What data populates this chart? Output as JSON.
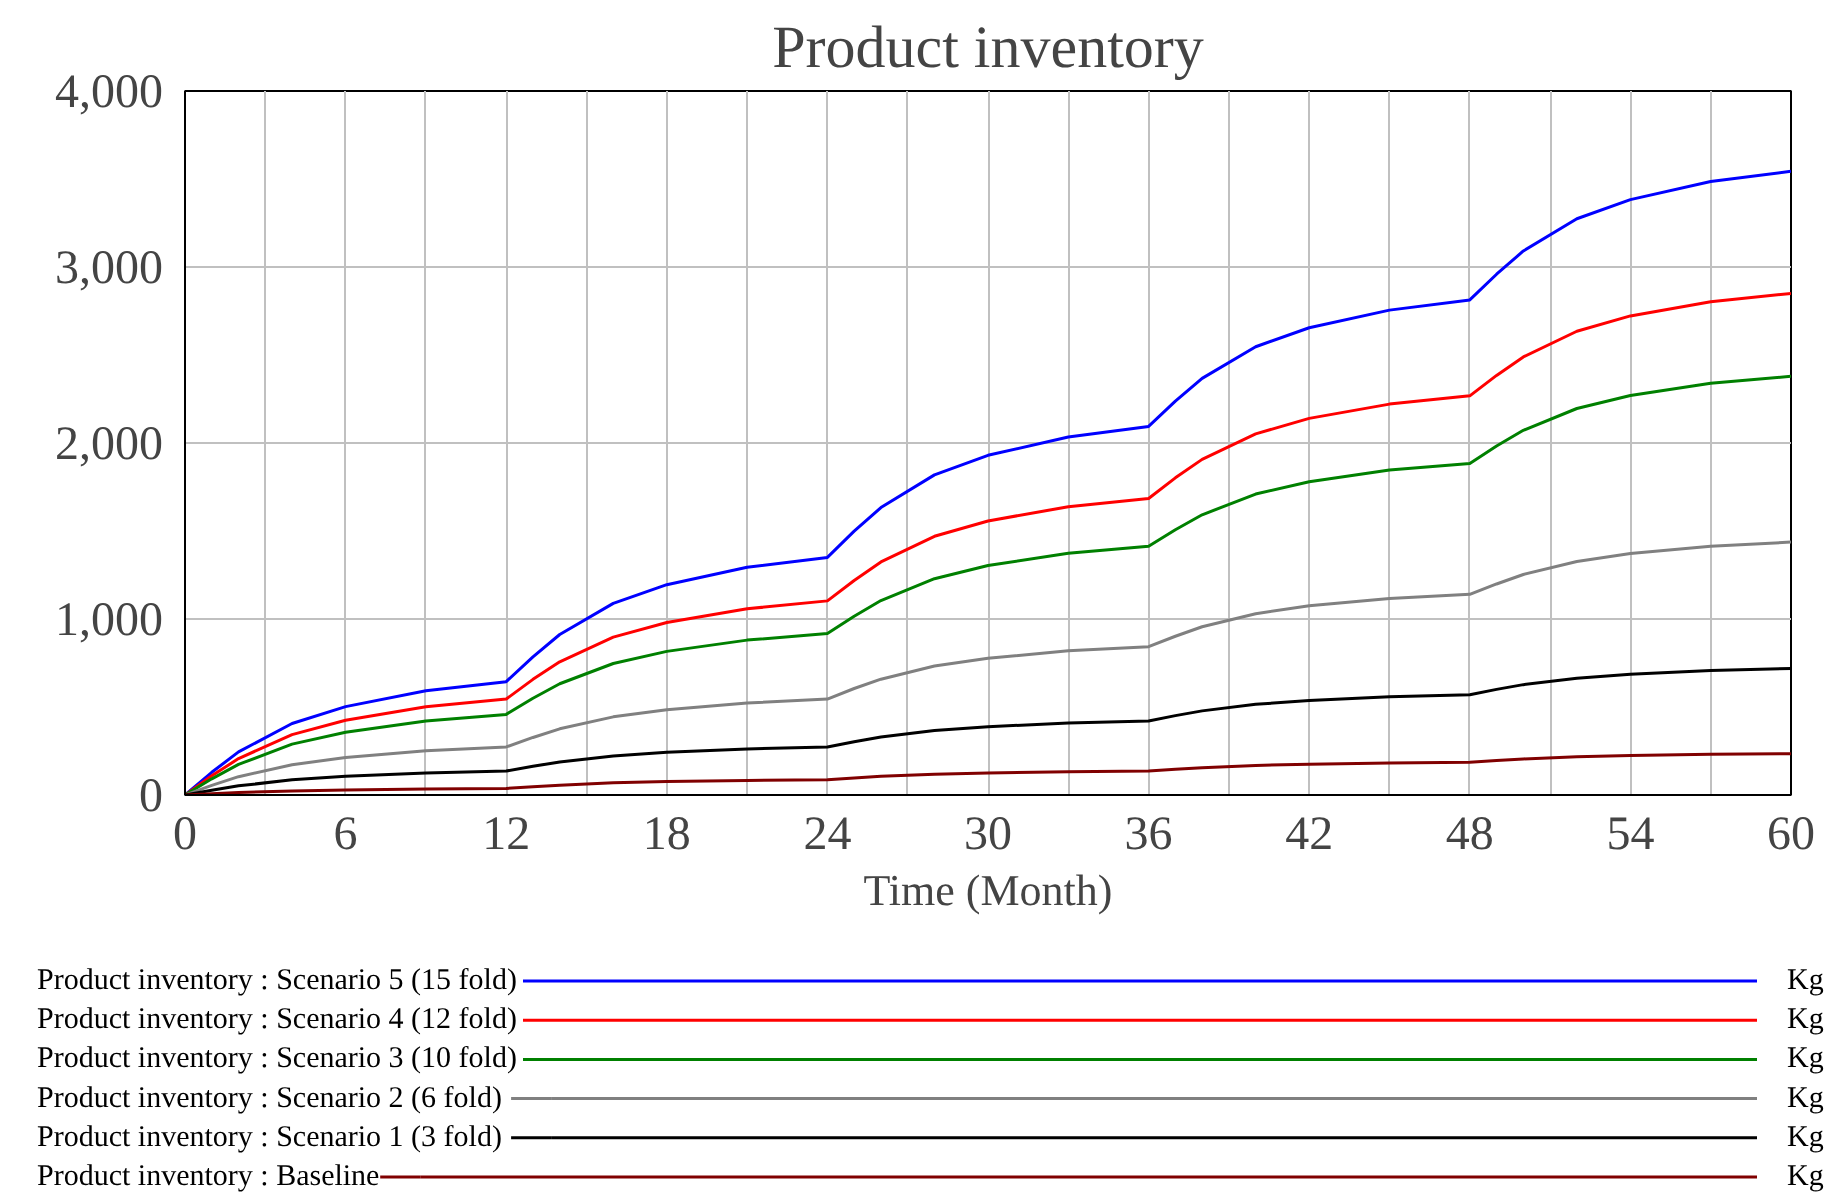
{
  "chart_data": {
    "type": "line",
    "title": "Product inventory",
    "xlabel": "Time (Month)",
    "x": [
      0,
      1,
      2,
      4,
      6,
      9,
      12,
      13,
      14,
      16,
      18,
      21,
      24,
      25,
      26,
      28,
      30,
      33,
      36,
      37,
      38,
      40,
      42,
      45,
      48,
      49,
      50,
      52,
      54,
      57,
      60
    ],
    "xlim": [
      0,
      60
    ],
    "xticks": [
      0,
      {
        "value": 3,
        "label": null
      },
      6,
      {
        "value": 9,
        "label": null
      },
      12,
      {
        "value": 15,
        "label": null
      },
      18,
      {
        "value": 21,
        "label": null
      },
      24,
      {
        "value": 27,
        "label": null
      },
      30,
      {
        "value": 33,
        "label": null
      },
      36,
      {
        "value": 39,
        "label": null
      },
      42,
      {
        "value": 45,
        "label": null
      },
      48,
      {
        "value": 51,
        "label": null
      },
      54,
      {
        "value": 57,
        "label": null
      },
      60
    ],
    "ylim": [
      0,
      4000
    ],
    "yticks": [
      0,
      {
        "value": 1000,
        "label": "1,000"
      },
      {
        "value": 2000,
        "label": "2,000"
      },
      {
        "value": 3000,
        "label": "3,000"
      },
      {
        "value": 4000,
        "label": "4,000"
      }
    ],
    "grid": true,
    "legend": "bottom",
    "marker": "none",
    "line_style": "solid",
    "series": [
      {
        "name": "Product inventory : Scenario 5 (15 fold)",
        "color": "#0000ff",
        "values": [
          0,
          129,
          245,
          406,
          502,
          592,
          644,
          785,
          912,
          1089,
          1195,
          1294,
          1350,
          1499,
          1633,
          1819,
          1930,
          2034,
          2094,
          2238,
          2367,
          2547,
          2655,
          2755,
          2813,
          2959,
          3091,
          3274,
          3383,
          3486,
          3544
        ]
      },
      {
        "name": "Product inventory : Scenario 4 (12 fold)",
        "color": "#ff0000",
        "values": [
          0,
          109,
          207,
          343,
          425,
          501,
          545,
          657,
          757,
          897,
          980,
          1058,
          1103,
          1219,
          1324,
          1470,
          1557,
          1638,
          1685,
          1802,
          1907,
          2052,
          2140,
          2221,
          2268,
          2384,
          2489,
          2635,
          2722,
          2803,
          2850
        ]
      },
      {
        "name": "Product inventory : Scenario 3 (10 fold)",
        "color": "#008000",
        "values": [
          0,
          92,
          174,
          289,
          357,
          421,
          458,
          550,
          632,
          747,
          816,
          880,
          917,
          1016,
          1105,
          1229,
          1304,
          1373,
          1413,
          1507,
          1592,
          1710,
          1780,
          1846,
          1884,
          1983,
          2072,
          2196,
          2270,
          2339,
          2379
        ]
      },
      {
        "name": "Product inventory : Scenario 2 (6 fold)",
        "color": "#808080",
        "values": [
          0,
          55,
          104,
          172,
          213,
          251,
          273,
          327,
          376,
          444,
          485,
          523,
          545,
          605,
          658,
          733,
          777,
          819,
          843,
          902,
          956,
          1030,
          1075,
          1116,
          1140,
          1199,
          1253,
          1327,
          1372,
          1413,
          1437
        ]
      },
      {
        "name": "Product inventory : Scenario 1 (3 fold)",
        "color": "#000000",
        "values": [
          0,
          27,
          52,
          86,
          106,
          125,
          136,
          163,
          188,
          222,
          243,
          262,
          273,
          303,
          329,
          366,
          388,
          409,
          421,
          451,
          478,
          515,
          537,
          558,
          570,
          600,
          627,
          664,
          686,
          707,
          719
        ]
      },
      {
        "name": "Product inventory : Baseline",
        "color": "#800000",
        "values": [
          0,
          7,
          14,
          23,
          29,
          34,
          37,
          47,
          56,
          69,
          76,
          83,
          87,
          97,
          106,
          118,
          125,
          132,
          136,
          146,
          155,
          168,
          175,
          182,
          186,
          196,
          205,
          217,
          224,
          231,
          235
        ]
      }
    ],
    "annotations": [
      "Kg",
      "Kg",
      "Kg",
      "Kg",
      "Kg",
      "Kg"
    ]
  }
}
